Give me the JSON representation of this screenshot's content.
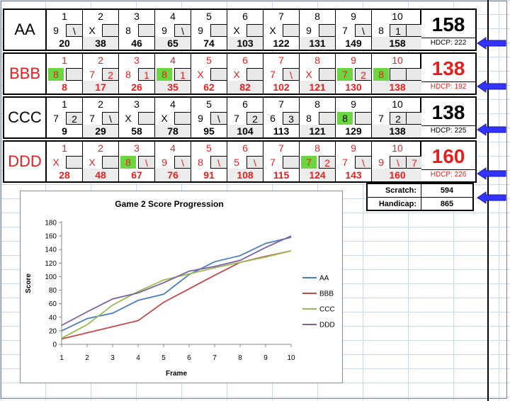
{
  "players": [
    {
      "name": "AA",
      "color": "#000000",
      "frames": [
        {
          "num": "1",
          "b1": "9",
          "b2": "\\",
          "score": "20",
          "g1": false,
          "g2": false
        },
        {
          "num": "2",
          "b1": "X",
          "b2": "",
          "score": "38",
          "g1": false,
          "g2": false
        },
        {
          "num": "3",
          "b1": "8",
          "b2": "",
          "score": "46",
          "g1": false,
          "g2": false
        },
        {
          "num": "4",
          "b1": "9",
          "b2": "\\",
          "score": "65",
          "g1": false,
          "g2": false
        },
        {
          "num": "5",
          "b1": "9",
          "b2": "",
          "score": "74",
          "g1": false,
          "g2": false
        },
        {
          "num": "6",
          "b1": "X",
          "b2": "",
          "score": "103",
          "g1": false,
          "g2": false
        },
        {
          "num": "7",
          "b1": "X",
          "b2": "",
          "score": "122",
          "g1": false,
          "g2": false
        },
        {
          "num": "8",
          "b1": "9",
          "b2": "",
          "score": "131",
          "g1": false,
          "g2": false
        },
        {
          "num": "9",
          "b1": "7",
          "b2": "\\",
          "score": "149",
          "g1": false,
          "g2": false
        },
        {
          "num": "10",
          "b1": "8",
          "b2": "1",
          "b3": "",
          "score": "158",
          "g1": false,
          "g2": false
        }
      ],
      "total": "158",
      "hdcp": "HDCP: 222"
    },
    {
      "name": "BBB",
      "color": "#e81e1e",
      "frames": [
        {
          "num": "1",
          "b1": "8",
          "b2": "",
          "score": "8",
          "g1": true,
          "g2": false
        },
        {
          "num": "2",
          "b1": "7",
          "b2": "2",
          "score": "17",
          "g1": false,
          "g2": false
        },
        {
          "num": "3",
          "b1": "8",
          "b2": "1",
          "score": "26",
          "g1": false,
          "g2": false
        },
        {
          "num": "4",
          "b1": "8",
          "b2": "1",
          "score": "35",
          "g1": true,
          "g2": false
        },
        {
          "num": "5",
          "b1": "X",
          "b2": "",
          "score": "62",
          "g1": false,
          "g2": false
        },
        {
          "num": "6",
          "b1": "X",
          "b2": "",
          "score": "82",
          "g1": false,
          "g2": false
        },
        {
          "num": "7",
          "b1": "7",
          "b2": "\\",
          "score": "102",
          "g1": false,
          "g2": false
        },
        {
          "num": "8",
          "b1": "X",
          "b2": "",
          "score": "121",
          "g1": false,
          "g2": false
        },
        {
          "num": "9",
          "b1": "7",
          "b2": "2",
          "score": "130",
          "g1": true,
          "g2": false
        },
        {
          "num": "10",
          "b1": "8",
          "b2": "",
          "b3": "",
          "score": "138",
          "g1": true,
          "g2": false
        }
      ],
      "total": "138",
      "hdcp": "HDCP: 192"
    },
    {
      "name": "CCC",
      "color": "#000000",
      "frames": [
        {
          "num": "1",
          "b1": "7",
          "b2": "2",
          "score": "9",
          "g1": false,
          "g2": false
        },
        {
          "num": "2",
          "b1": "7",
          "b2": "\\",
          "score": "29",
          "g1": false,
          "g2": false
        },
        {
          "num": "3",
          "b1": "X",
          "b2": "",
          "score": "58",
          "g1": false,
          "g2": false
        },
        {
          "num": "4",
          "b1": "X",
          "b2": "",
          "score": "78",
          "g1": false,
          "g2": false
        },
        {
          "num": "5",
          "b1": "9",
          "b2": "\\",
          "score": "95",
          "g1": false,
          "g2": false
        },
        {
          "num": "6",
          "b1": "7",
          "b2": "2",
          "score": "104",
          "g1": false,
          "g2": false
        },
        {
          "num": "7",
          "b1": "6",
          "b2": "3",
          "score": "113",
          "g1": false,
          "g2": false
        },
        {
          "num": "8",
          "b1": "8",
          "b2": "",
          "score": "121",
          "g1": false,
          "g2": false
        },
        {
          "num": "9",
          "b1": "8",
          "b2": "",
          "score": "129",
          "g1": true,
          "g2": false
        },
        {
          "num": "10",
          "b1": "7",
          "b2": "2",
          "b3": "",
          "score": "138",
          "g1": false,
          "g2": false
        }
      ],
      "total": "138",
      "hdcp": "HDCP: 225"
    },
    {
      "name": "DDD",
      "color": "#e81e1e",
      "frames": [
        {
          "num": "1",
          "b1": "X",
          "b2": "",
          "score": "28",
          "g1": false,
          "g2": false
        },
        {
          "num": "2",
          "b1": "X",
          "b2": "",
          "score": "48",
          "g1": false,
          "g2": false
        },
        {
          "num": "3",
          "b1": "8",
          "b2": "\\",
          "score": "67",
          "g1": true,
          "g2": false
        },
        {
          "num": "4",
          "b1": "9",
          "b2": "\\",
          "score": "76",
          "g1": false,
          "g2": false
        },
        {
          "num": "5",
          "b1": "8",
          "b2": "\\",
          "score": "91",
          "g1": false,
          "g2": false
        },
        {
          "num": "6",
          "b1": "5",
          "b2": "\\",
          "score": "108",
          "g1": false,
          "g2": false
        },
        {
          "num": "7",
          "b1": "7",
          "b2": "",
          "score": "115",
          "g1": false,
          "g2": false
        },
        {
          "num": "8",
          "b1": "7",
          "b2": "2",
          "score": "124",
          "g1": true,
          "g2": false
        },
        {
          "num": "9",
          "b1": "7",
          "b2": "\\",
          "score": "143",
          "g1": false,
          "g2": false
        },
        {
          "num": "10",
          "b1": "9",
          "b2": "\\",
          "b3": "7",
          "score": "160",
          "g1": false,
          "g2": false
        }
      ],
      "total": "160",
      "hdcp": "HDCP: 226"
    }
  ],
  "summary": {
    "scratch_label": "Scratch:",
    "scratch_value": "594",
    "handicap_label": "Handicap:",
    "handicap_value": "865"
  },
  "arrow_color": "#3333ff",
  "chart_data": {
    "type": "line",
    "title": "Game 2 Score Progression",
    "xlabel": "Frame",
    "ylabel": "Score",
    "x": [
      1,
      2,
      3,
      4,
      5,
      6,
      7,
      8,
      9,
      10
    ],
    "ylim": [
      0,
      180
    ],
    "yticks": [
      0,
      20,
      40,
      60,
      80,
      100,
      120,
      140,
      160,
      180
    ],
    "grid": false,
    "legend": "right",
    "series": [
      {
        "name": "AA",
        "color": "#4a7ebb",
        "values": [
          20,
          38,
          46,
          65,
          74,
          103,
          122,
          131,
          149,
          158
        ]
      },
      {
        "name": "BBB",
        "color": "#be4b48",
        "values": [
          8,
          17,
          26,
          35,
          62,
          82,
          102,
          121,
          130,
          138
        ]
      },
      {
        "name": "CCC",
        "color": "#98b954",
        "values": [
          9,
          29,
          58,
          78,
          95,
          104,
          113,
          121,
          129,
          138
        ]
      },
      {
        "name": "DDD",
        "color": "#7d60a0",
        "values": [
          28,
          48,
          67,
          76,
          91,
          108,
          115,
          124,
          143,
          160
        ]
      }
    ]
  }
}
